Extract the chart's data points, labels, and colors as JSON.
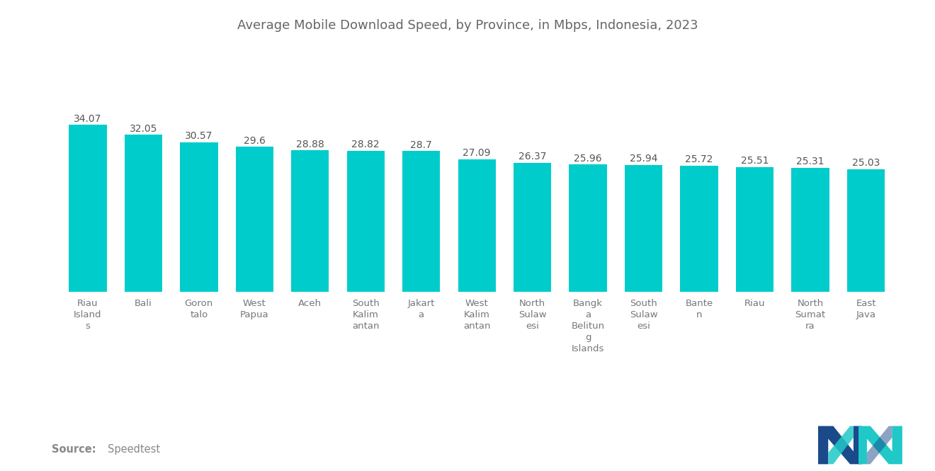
{
  "title": "Average Mobile Download Speed, by Province, in Mbps, Indonesia, 2023",
  "categories": [
    "Riau\nIsland\ns",
    "Bali",
    "Goron\ntalo",
    "West\nPapua",
    "Aceh",
    "South\nKalim\nantan",
    "Jakart\na",
    "West\nKalim\nantan",
    "North\nSulaw\nesi",
    "Bangk\na\nBelitun\ng\nIslands",
    "South\nSulaw\nesi",
    "Bante\nn",
    "Riau",
    "North\nSumat\nra",
    "East\nJava"
  ],
  "values": [
    34.07,
    32.05,
    30.57,
    29.6,
    28.88,
    28.82,
    28.7,
    27.09,
    26.37,
    25.96,
    25.94,
    25.72,
    25.51,
    25.31,
    25.03
  ],
  "bar_color": "#00CCCC",
  "value_labels": [
    "34.07",
    "32.05",
    "30.57",
    "29.6",
    "28.88",
    "28.82",
    "28.7",
    "27.09",
    "26.37",
    "25.96",
    "25.94",
    "25.72",
    "25.51",
    "25.31",
    "25.03"
  ],
  "source_bold": "Source:",
  "source_text": "  Speedtest",
  "background_color": "#ffffff",
  "title_color": "#666666",
  "value_color": "#555555",
  "label_color": "#777777",
  "logo_dark": "#1a4a8a",
  "logo_teal": "#20C8C8"
}
